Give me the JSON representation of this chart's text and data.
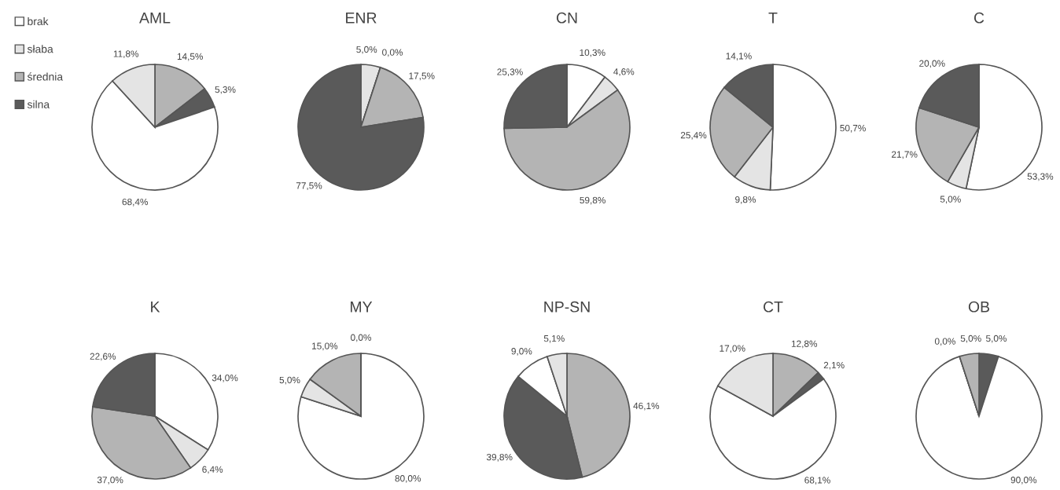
{
  "chart_data": [
    {
      "type": "pie",
      "title": "AML",
      "legend": "left",
      "categories": [
        "średnia",
        "silna",
        "brak",
        "słaba"
      ],
      "values": [
        14.5,
        5.3,
        68.4,
        11.8
      ],
      "colors": [
        "#b4b4b4",
        "#5a5a5a",
        "#ffffff",
        "#e4e4e4"
      ],
      "value_labels": [
        "14,5%",
        "5,3%",
        "68,4%",
        "11,8%"
      ]
    },
    {
      "type": "pie",
      "title": "ENR",
      "categories": [
        null,
        null,
        null,
        null
      ],
      "values": [
        5.0,
        0.0,
        17.5,
        77.5
      ],
      "colors": [
        "#e4e4e4",
        "#ffffff",
        "#b4b4b4",
        "#5a5a5a"
      ],
      "value_labels": [
        "5,0%",
        "0,0%",
        "17,5%",
        "77,5%"
      ]
    },
    {
      "type": "pie",
      "title": "CN",
      "categories": [
        null,
        null,
        null,
        null
      ],
      "values": [
        10.3,
        4.6,
        59.8,
        25.3
      ],
      "colors": [
        "#ffffff",
        "#e4e4e4",
        "#b4b4b4",
        "#5a5a5a"
      ],
      "value_labels": [
        "10,3%",
        "4,6%",
        "59,8%",
        "25,3%"
      ]
    },
    {
      "type": "pie",
      "title": "T",
      "categories": [
        null,
        null,
        null,
        null
      ],
      "values": [
        50.7,
        9.8,
        25.4,
        14.1
      ],
      "colors": [
        "#ffffff",
        "#e4e4e4",
        "#b4b4b4",
        "#5a5a5a"
      ],
      "value_labels": [
        "50,7%",
        "9,8%",
        "25,4%",
        "14,1%"
      ]
    },
    {
      "type": "pie",
      "title": "C",
      "categories": [
        null,
        null,
        null,
        null
      ],
      "values": [
        53.3,
        5.0,
        21.7,
        20.0
      ],
      "colors": [
        "#ffffff",
        "#e4e4e4",
        "#b4b4b4",
        "#5a5a5a"
      ],
      "value_labels": [
        "53,3%",
        "5,0%",
        "21,7%",
        "20,0%"
      ]
    },
    {
      "type": "pie",
      "title": "K",
      "categories": [
        null,
        null,
        null,
        null
      ],
      "values": [
        34.0,
        6.4,
        37.0,
        22.6
      ],
      "colors": [
        "#ffffff",
        "#e4e4e4",
        "#b4b4b4",
        "#5a5a5a"
      ],
      "value_labels": [
        "34,0%",
        "6,4%",
        "37,0%",
        "22,6%"
      ]
    },
    {
      "type": "pie",
      "title": "MY",
      "categories": [
        null,
        null,
        null,
        null
      ],
      "values": [
        80.0,
        5.0,
        15.0,
        0.0
      ],
      "colors": [
        "#ffffff",
        "#e4e4e4",
        "#b4b4b4",
        "#5a5a5a"
      ],
      "value_labels": [
        "80,0%",
        "5,0%",
        "15,0%",
        "0,0%"
      ]
    },
    {
      "type": "pie",
      "title": "NP-SN",
      "categories": [
        null,
        null,
        null,
        null
      ],
      "values": [
        46.1,
        39.8,
        9.0,
        5.1
      ],
      "colors": [
        "#b4b4b4",
        "#5a5a5a",
        "#ffffff",
        "#e4e4e4"
      ],
      "value_labels": [
        "46,1%",
        "39,8%",
        "9,0%",
        "5,1%"
      ]
    },
    {
      "type": "pie",
      "title": "CT",
      "categories": [
        null,
        null,
        null,
        null
      ],
      "values": [
        12.8,
        2.1,
        68.1,
        17.0
      ],
      "colors": [
        "#b4b4b4",
        "#5a5a5a",
        "#ffffff",
        "#e4e4e4"
      ],
      "value_labels": [
        "12,8%",
        "2,1%",
        "68,1%",
        "17,0%"
      ]
    },
    {
      "type": "pie",
      "title": "OB",
      "categories": [
        null,
        null,
        null,
        null
      ],
      "values": [
        5.0,
        90.0,
        0.0,
        5.0
      ],
      "colors": [
        "#5a5a5a",
        "#ffffff",
        "#e4e4e4",
        "#b4b4b4"
      ],
      "value_labels": [
        "5,0%",
        "90,0%",
        "0,0%",
        "5,0%"
      ]
    }
  ]
}
